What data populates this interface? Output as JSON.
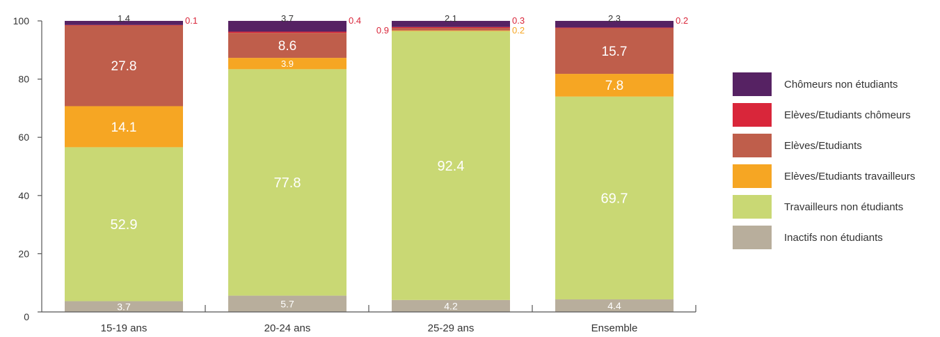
{
  "chart_data": {
    "type": "bar",
    "stacked": true,
    "categories": [
      "15-19 ans",
      "20-24 ans",
      "25-29 ans",
      "Ensemble"
    ],
    "ylim": [
      0,
      100
    ],
    "yticks": [
      0,
      20,
      40,
      60,
      80,
      100
    ],
    "title": "",
    "xlabel": "",
    "ylabel": "",
    "grid": false,
    "legend_placement": "right",
    "series": [
      {
        "name": "Inactifs non étudiants",
        "color": "#b8ae9c",
        "values": [
          3.7,
          5.7,
          4.2,
          4.4
        ],
        "labels": [
          "3.7",
          "5.7",
          "4.2",
          "4.4"
        ]
      },
      {
        "name": "Travailleurs non étudiants",
        "color": "#c9d874",
        "values": [
          52.9,
          77.8,
          92.4,
          69.7
        ],
        "labels": [
          "52.9",
          "77.8",
          "92.4",
          "69.7"
        ]
      },
      {
        "name": "Elèves/Etudiants travailleurs",
        "color": "#f6a623",
        "values": [
          14.1,
          3.9,
          0.2,
          7.8
        ],
        "labels": [
          "14.1",
          "3.9",
          "0.2",
          "7.8"
        ]
      },
      {
        "name": "Elèves/Etudiants",
        "color": "#bf5e4b",
        "values": [
          27.8,
          8.6,
          0.9,
          15.7
        ],
        "labels": [
          "27.8",
          "8.6",
          "0.9",
          "15.7"
        ]
      },
      {
        "name": "Elèves/Etudiants chômeurs",
        "color": "#d9263a",
        "values": [
          0.1,
          0.4,
          0.3,
          0.2
        ],
        "labels": [
          "0.1",
          "0.4",
          "0.3",
          "0.2"
        ]
      },
      {
        "name": "Chômeurs non étudiants",
        "color": "#562263",
        "values": [
          1.4,
          3.7,
          2.1,
          2.3
        ],
        "labels": [
          "1.4",
          "3.7",
          "2.1",
          "2.3"
        ]
      }
    ],
    "legend_order": [
      "Chômeurs non étudiants",
      "Elèves/Etudiants chômeurs",
      "Elèves/Etudiants",
      "Elèves/Etudiants travailleurs",
      "Travailleurs non étudiants",
      "Inactifs non étudiants"
    ]
  }
}
